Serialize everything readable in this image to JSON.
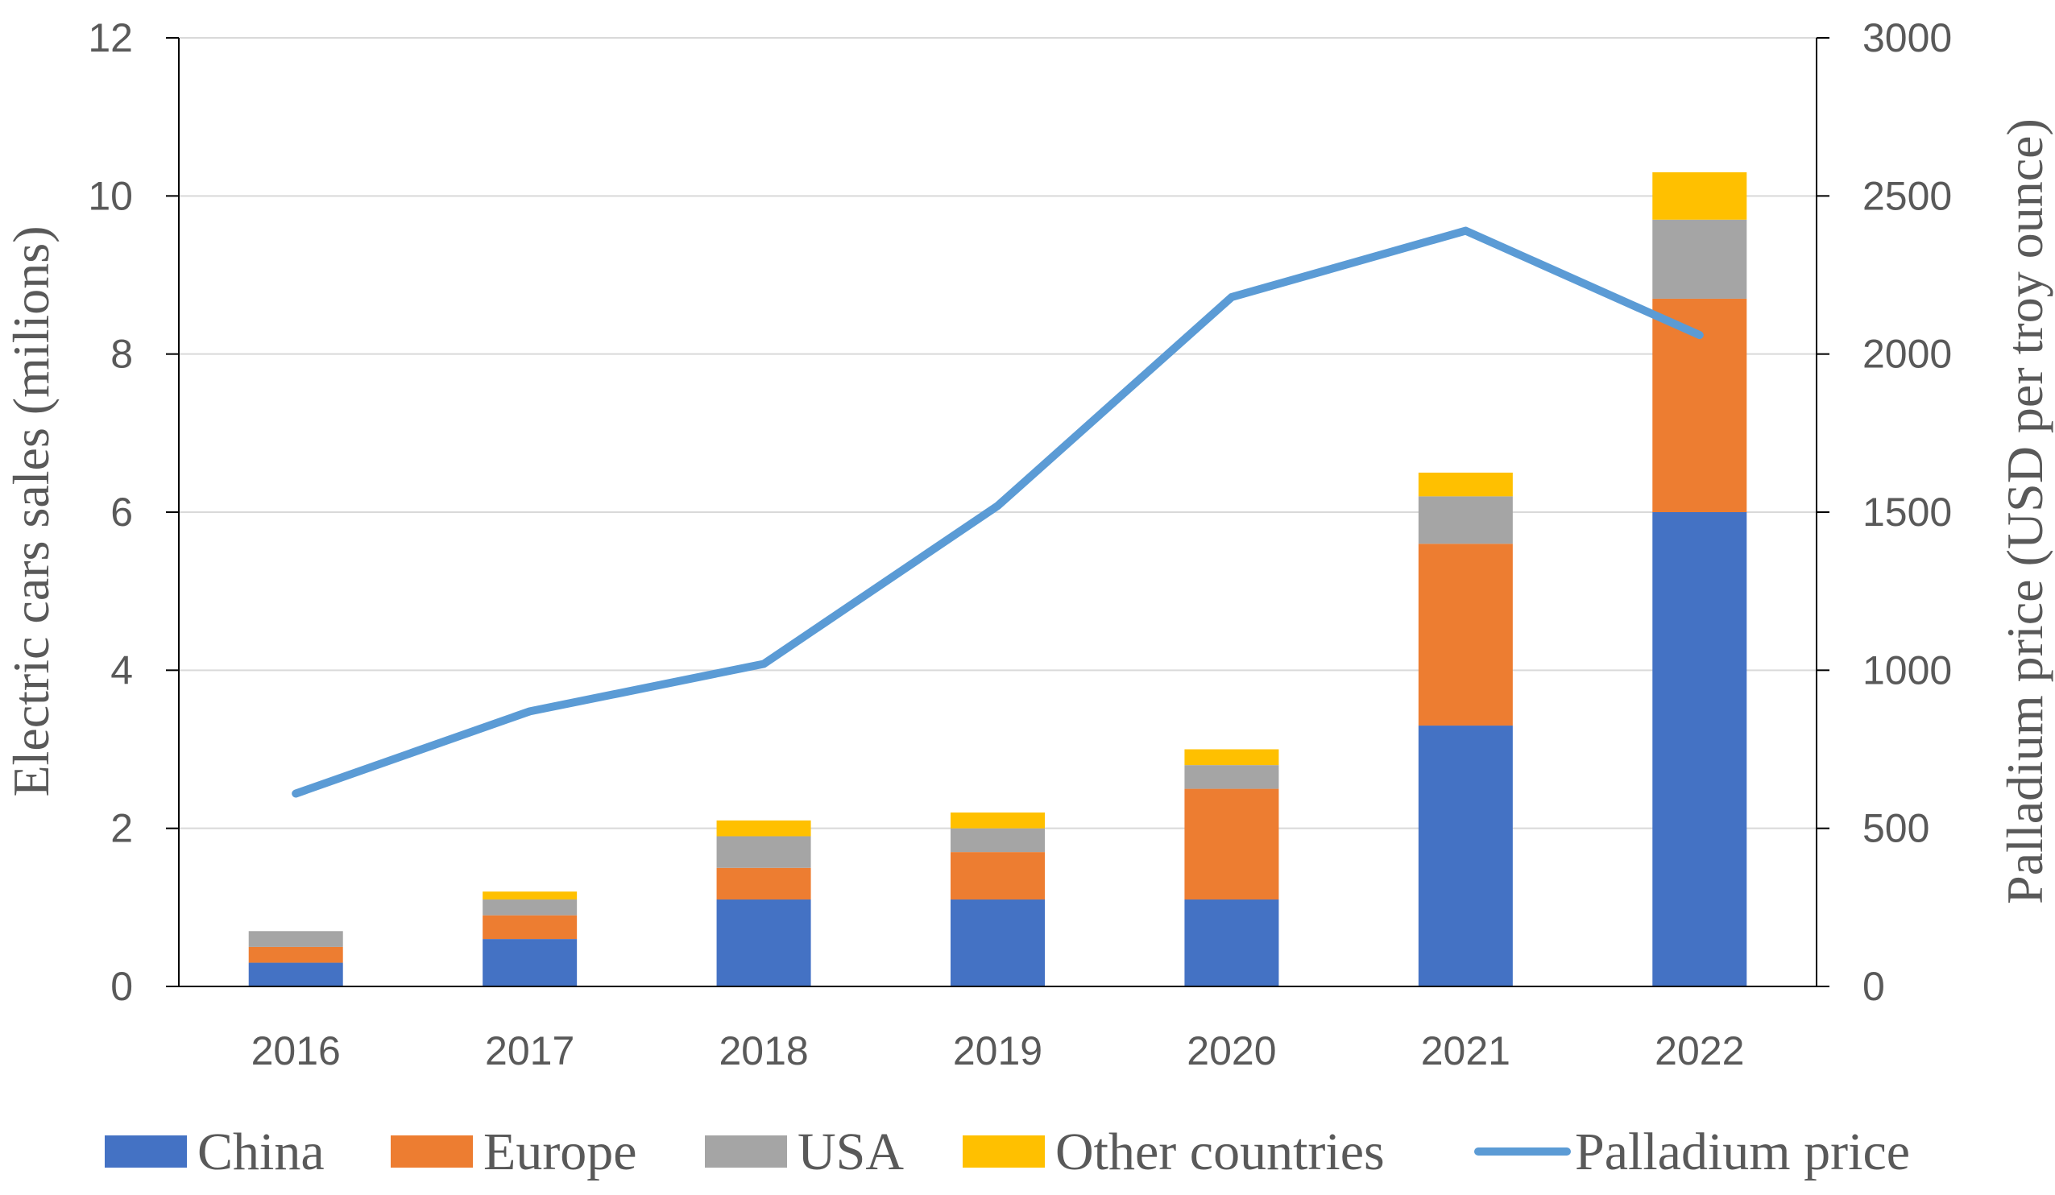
{
  "chart_data": {
    "type": "bar",
    "stacked": true,
    "categories": [
      "2016",
      "2017",
      "2018",
      "2019",
      "2020",
      "2021",
      "2022"
    ],
    "series": [
      {
        "name": "China",
        "color": "#4472C4",
        "values": [
          0.3,
          0.6,
          1.1,
          1.1,
          1.1,
          3.3,
          6.0
        ]
      },
      {
        "name": "Europe",
        "color": "#ED7D31",
        "values": [
          0.2,
          0.3,
          0.4,
          0.6,
          1.4,
          2.3,
          2.7
        ]
      },
      {
        "name": "USA",
        "color": "#A5A5A5",
        "values": [
          0.2,
          0.2,
          0.4,
          0.3,
          0.3,
          0.6,
          1.0
        ]
      },
      {
        "name": "Other countries",
        "color": "#FFC000",
        "values": [
          0.0,
          0.1,
          0.2,
          0.2,
          0.2,
          0.3,
          0.6
        ]
      }
    ],
    "line_series": {
      "name": "Palladium price",
      "color": "#5B9BD5",
      "axis": "right",
      "values": [
        610,
        870,
        1020,
        1520,
        2180,
        2390,
        2060
      ]
    },
    "ylabel": "Electric cars sales (milions)",
    "ylim": [
      0,
      12
    ],
    "yticks": [
      "0",
      "2",
      "4",
      "6",
      "8",
      "10",
      "12"
    ],
    "y2label": "Palladium price (USD per troy ounce)",
    "y2lim": [
      0,
      3000
    ],
    "y2ticks": [
      "0",
      "500",
      "1000",
      "1500",
      "2000",
      "2500",
      "3000"
    ],
    "grid": true,
    "legend_position": "bottom",
    "legend": [
      "China",
      "Europe",
      "USA",
      "Other countries",
      "Palladium price"
    ]
  }
}
